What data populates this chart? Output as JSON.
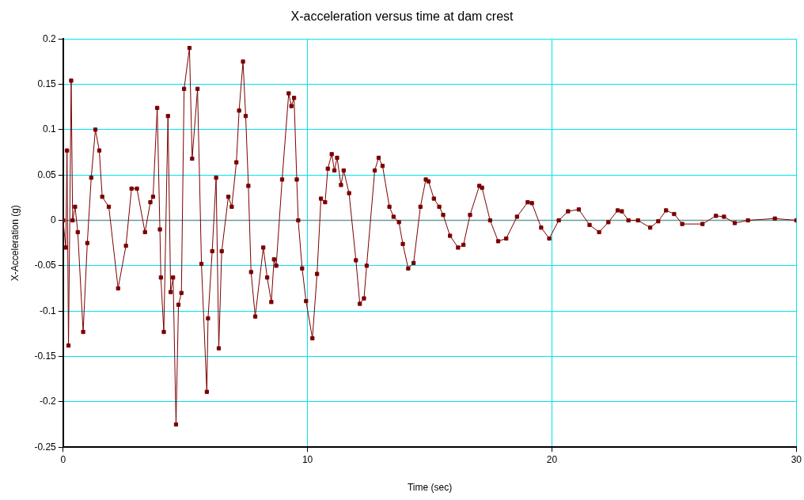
{
  "chart_data": {
    "type": "line",
    "title": "X-acceleration versus time at dam crest",
    "xlabel": "Time (sec)",
    "ylabel": "X-Acceleration (g)",
    "x": [
      0,
      0.11,
      0.16,
      0.22,
      0.33,
      0.39,
      0.49,
      0.6,
      0.82,
      0.99,
      1.15,
      1.32,
      1.48,
      1.6,
      1.87,
      2.25,
      2.57,
      2.8,
      3.02,
      3.35,
      3.57,
      3.68,
      3.85,
      3.96,
      4.0,
      4.12,
      4.29,
      4.4,
      4.5,
      4.62,
      4.72,
      4.84,
      4.95,
      5.17,
      5.28,
      5.5,
      5.66,
      5.88,
      5.93,
      6.1,
      6.26,
      6.37,
      6.49,
      6.76,
      6.9,
      7.09,
      7.2,
      7.36,
      7.47,
      7.58,
      7.69,
      7.86,
      8.19,
      8.35,
      8.52,
      8.63,
      8.72,
      8.96,
      9.23,
      9.34,
      9.45,
      9.56,
      9.62,
      9.78,
      9.94,
      10.2,
      10.39,
      10.55,
      10.72,
      10.83,
      10.99,
      11.1,
      11.21,
      11.37,
      11.48,
      11.7,
      11.98,
      12.14,
      12.31,
      12.42,
      12.75,
      12.91,
      13.07,
      13.35,
      13.52,
      13.74,
      13.9,
      14.12,
      14.34,
      14.62,
      14.84,
      14.95,
      15.17,
      15.39,
      15.55,
      15.83,
      16.16,
      16.38,
      16.65,
      17.03,
      17.14,
      17.47,
      17.8,
      18.13,
      18.57,
      19.01,
      19.18,
      19.56,
      19.89,
      20.28,
      20.66,
      21.1,
      21.54,
      21.93,
      22.31,
      22.69,
      22.86,
      23.13,
      23.52,
      24.02,
      24.35,
      24.67,
      25.0,
      25.33,
      26.16,
      26.71,
      27.04,
      27.48,
      28.02,
      29.12,
      30
    ],
    "series": [
      {
        "color": "#7b0000",
        "values": [
          0,
          -0.03,
          0.077,
          -0.138,
          0.154,
          0,
          0.015,
          -0.013,
          -0.123,
          -0.025,
          0.047,
          0.1,
          0.077,
          0.026,
          0.015,
          -0.075,
          -0.028,
          0.035,
          0.035,
          -0.013,
          0.02,
          0.026,
          0.124,
          -0.01,
          -0.063,
          -0.123,
          0.115,
          -0.079,
          -0.063,
          -0.225,
          -0.093,
          -0.08,
          0.145,
          0.19,
          0.068,
          0.145,
          -0.048,
          -0.189,
          -0.108,
          -0.034,
          0.047,
          -0.141,
          -0.034,
          0.026,
          0.015,
          0.064,
          0.121,
          0.175,
          0.115,
          0.038,
          -0.057,
          -0.106,
          -0.03,
          -0.063,
          -0.09,
          -0.043,
          -0.05,
          0.045,
          0.14,
          0.126,
          0.135,
          0.045,
          0,
          -0.053,
          -0.089,
          -0.13,
          -0.059,
          0.024,
          0.02,
          0.057,
          0.073,
          0.055,
          0.069,
          0.039,
          0.055,
          0.03,
          -0.044,
          -0.092,
          -0.086,
          -0.05,
          0.055,
          0.069,
          0.06,
          0.015,
          0.004,
          -0.002,
          -0.026,
          -0.053,
          -0.047,
          0.015,
          0.045,
          0.043,
          0.024,
          0.015,
          0.006,
          -0.017,
          -0.03,
          -0.027,
          0.006,
          0.038,
          0.036,
          0,
          -0.023,
          -0.02,
          0.004,
          0.02,
          0.019,
          -0.008,
          -0.02,
          0,
          0.01,
          0.012,
          -0.005,
          -0.013,
          -0.002,
          0.011,
          0.01,
          0,
          0,
          -0.008,
          -0.001,
          0.011,
          0.007,
          -0.004,
          -0.004,
          0.005,
          0.004,
          -0.003,
          0,
          0.002,
          0
        ]
      }
    ],
    "xlim": [
      0,
      30
    ],
    "xticks": [
      0,
      10,
      20,
      30
    ],
    "ylim": [
      -0.25,
      0.2
    ],
    "yticks": [
      -0.25,
      -0.2,
      -0.15,
      -0.1,
      -0.05,
      0,
      0.05,
      0.1,
      0.15,
      0.2
    ],
    "ref_lines": [
      {
        "axis": "y",
        "value": 0,
        "color": "#6a9a9a"
      }
    ],
    "grid": true,
    "legend": false,
    "marker": "square",
    "line_style": "solid"
  }
}
